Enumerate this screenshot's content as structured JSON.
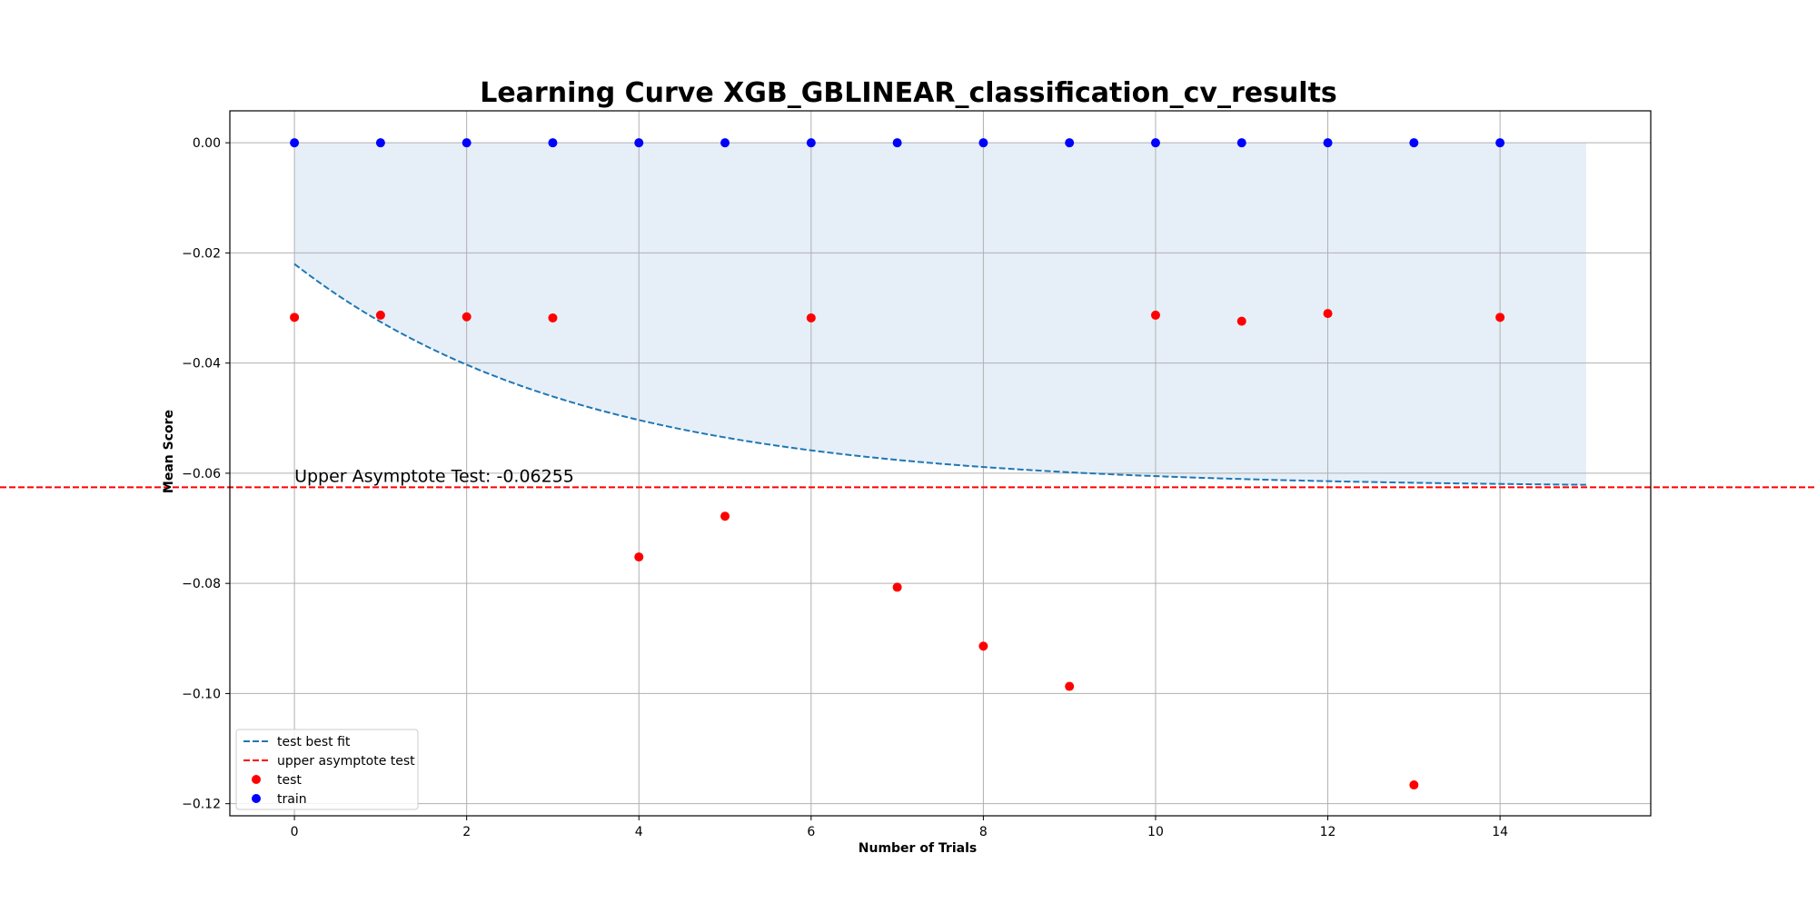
{
  "chart_data": {
    "type": "scatter",
    "title": "Learning Curve XGB_GBLINEAR_classification_cv_results",
    "xlabel": "Number of Trials",
    "ylabel": "Mean Score",
    "xlim": [
      -0.75,
      15.75
    ],
    "ylim": [
      -0.1222,
      0.0058
    ],
    "xticks": [
      0,
      2,
      4,
      6,
      8,
      10,
      12,
      14
    ],
    "xtick_labels": [
      "0",
      "2",
      "4",
      "6",
      "8",
      "10",
      "12",
      "14"
    ],
    "yticks": [
      0.0,
      -0.02,
      -0.04,
      -0.06,
      -0.08,
      -0.1,
      -0.12
    ],
    "ytick_labels": [
      "0.00",
      "−0.02",
      "−0.04",
      "−0.06",
      "−0.08",
      "−0.10",
      "−0.12"
    ],
    "grid": true,
    "legend_position": "lower-left",
    "series": [
      {
        "name": "test best fit",
        "kind": "line",
        "style": "dashed",
        "color": "#1f77b4",
        "function": "exp_decay",
        "params": {
          "asymptote": -0.06255,
          "start": -0.022,
          "decay_rate": 0.3
        },
        "x_range": [
          0,
          15
        ]
      },
      {
        "name": "upper asymptote test",
        "kind": "hline",
        "style": "dashed",
        "color": "#ff0000",
        "y": -0.06255
      },
      {
        "name": "test",
        "kind": "scatter",
        "color": "#ff0000",
        "x": [
          0,
          1,
          2,
          3,
          4,
          5,
          6,
          7,
          8,
          9,
          10,
          11,
          12,
          13,
          14
        ],
        "y": [
          -0.0317,
          -0.0313,
          -0.0316,
          -0.0318,
          -0.0752,
          -0.0678,
          -0.0318,
          -0.0807,
          -0.0914,
          -0.0987,
          -0.0313,
          -0.0324,
          -0.031,
          -0.1166,
          -0.0317
        ]
      },
      {
        "name": "train",
        "kind": "scatter",
        "color": "#0000ff",
        "x": [
          0,
          1,
          2,
          3,
          4,
          5,
          6,
          7,
          8,
          9,
          10,
          11,
          12,
          13,
          14
        ],
        "y": [
          0,
          0,
          0,
          0,
          0,
          0,
          0,
          0,
          0,
          0,
          0,
          0,
          0,
          0,
          0
        ]
      }
    ],
    "fill_region": {
      "color": "#e6eff8",
      "x_range": [
        0,
        15
      ],
      "upper": 0.0,
      "lower": "test best fit"
    },
    "annotations": [
      {
        "text": "Upper Asymptote Test: -0.06255",
        "x": 0,
        "y": -0.06255
      }
    ]
  }
}
